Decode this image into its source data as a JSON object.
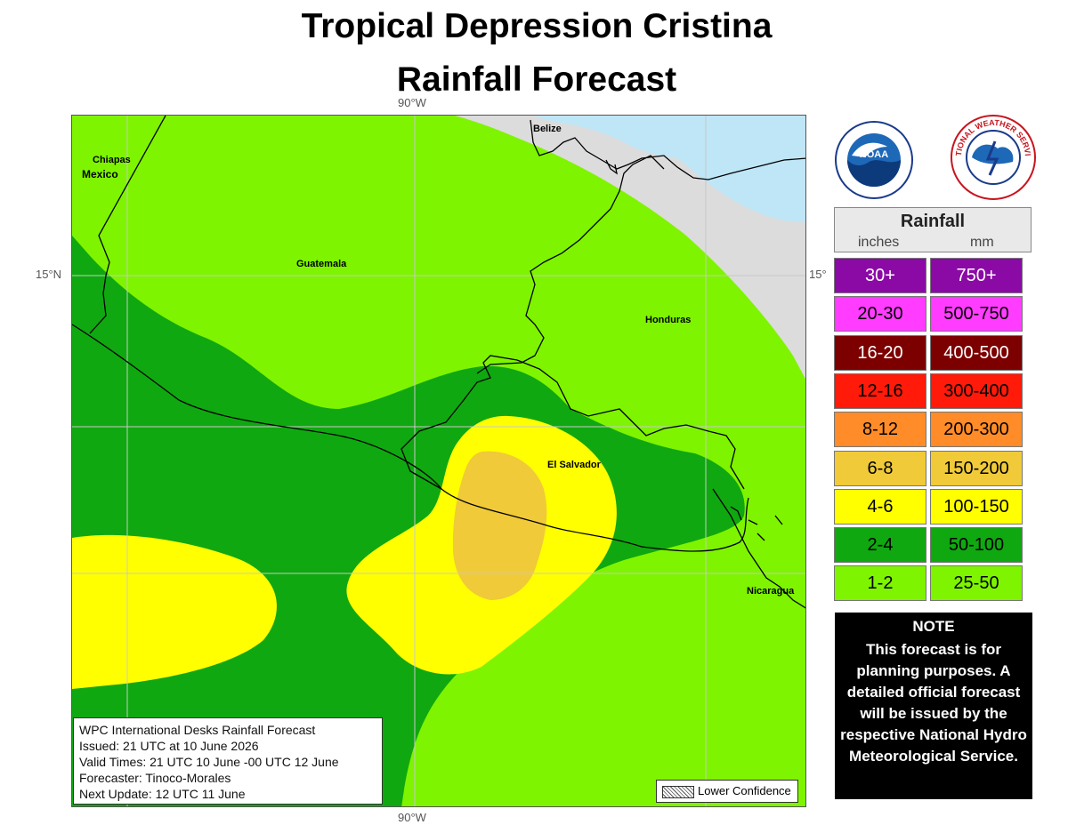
{
  "title": {
    "line1": "Tropical Depression Cristina",
    "line2": "Rainfall Forecast"
  },
  "map": {
    "grid_labels": {
      "top_lon": "90°W",
      "bottom_lon": "90°W",
      "left_lat": "15°N",
      "right_lat": "15°"
    },
    "place_labels": {
      "chiapas": "Chiapas",
      "mexico": "Mexico",
      "belize": "Belize",
      "guatemala": "Guatemala",
      "honduras": "Honduras",
      "el_salvador": "El Salvador",
      "nicaragua": "Nicaragua"
    },
    "colors": {
      "land_none": "#dcdcdc",
      "water": "#bfe6f6",
      "r1_2": "#7ef400",
      "r2_4": "#10a810",
      "r4_6": "#ffff00",
      "r6_8": "#f0ca38"
    }
  },
  "legend": {
    "title": "Rainfall",
    "col_inches": "inches",
    "col_mm": "mm",
    "rows": [
      {
        "inches": "30+",
        "mm": "750+",
        "color": "#8b0aa6",
        "text_color": "#ffffff"
      },
      {
        "inches": "20-30",
        "mm": "500-750",
        "color": "#ff3cff",
        "text_color": "#000000"
      },
      {
        "inches": "16-20",
        "mm": "400-500",
        "color": "#7c0000",
        "text_color": "#ffffff"
      },
      {
        "inches": "12-16",
        "mm": "300-400",
        "color": "#ff1a0a",
        "text_color": "#000000"
      },
      {
        "inches": "8-12",
        "mm": "200-300",
        "color": "#ff8c28",
        "text_color": "#000000"
      },
      {
        "inches": "6-8",
        "mm": "150-200",
        "color": "#f0ca38",
        "text_color": "#000000"
      },
      {
        "inches": "4-6",
        "mm": "100-150",
        "color": "#ffff00",
        "text_color": "#000000"
      },
      {
        "inches": "2-4",
        "mm": "50-100",
        "color": "#10a810",
        "text_color": "#000000"
      },
      {
        "inches": "1-2",
        "mm": "25-50",
        "color": "#7ef400",
        "text_color": "#000000"
      }
    ]
  },
  "note": {
    "heading": "NOTE",
    "body": "This forecast is for planning purposes. A detailed official forecast will be issued by the respective National Hydro Meteorological Service."
  },
  "info": {
    "line1": "WPC International Desks Rainfall Forecast",
    "line2": "Issued: 21 UTC at 10 June 2026",
    "line3": "Valid Times: 21 UTC 10 June -00 UTC 12 June",
    "line4": "Forecaster: Tinoco-Morales",
    "line5": "Next Update:  12 UTC 11 June"
  },
  "lower_confidence": "Lower Confidence",
  "logos": {
    "noaa_text": "NOAA",
    "nws_text": "NATIONAL WEATHER SERVICE"
  }
}
